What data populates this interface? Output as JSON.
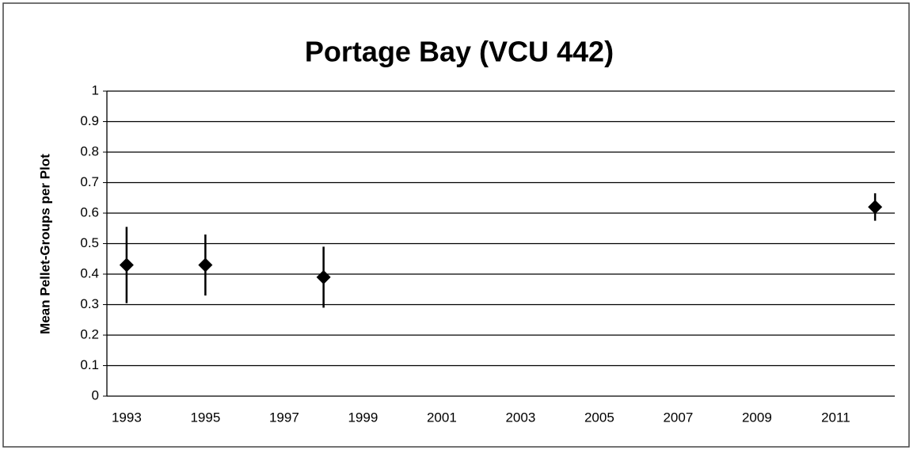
{
  "chart_data": {
    "type": "scatter",
    "title": "Portage Bay (VCU 442)",
    "y_label": "Mean Pellet-Groups per Plot",
    "x": [
      1993,
      1995,
      1998,
      2012
    ],
    "values": [
      0.43,
      0.43,
      0.39,
      0.62
    ],
    "errors": [
      0.125,
      0.1,
      0.1,
      0.045
    ],
    "color": "#000000",
    "xlim": [
      1992.5,
      2012.5
    ],
    "xticks": [
      1993,
      1995,
      1997,
      1999,
      2001,
      2003,
      2005,
      2007,
      2009,
      2011
    ],
    "ylim": [
      0,
      1
    ],
    "yticks": [
      0,
      0.1,
      0.2,
      0.3,
      0.4,
      0.5,
      0.6,
      0.7,
      0.8,
      0.9,
      1
    ],
    "grid": true
  }
}
